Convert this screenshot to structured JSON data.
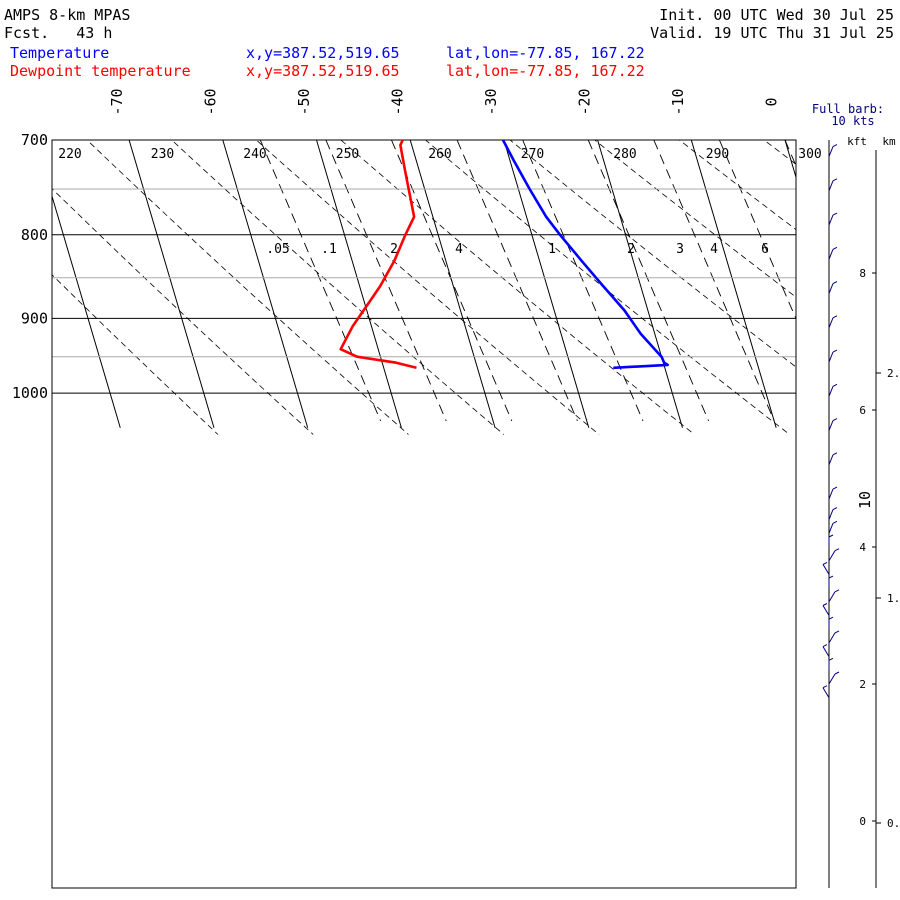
{
  "header": {
    "model": "AMPS 8-km MPAS",
    "fcst": "Fcst.   43 h",
    "init": "Init. 00 UTC Wed 30 Jul 25",
    "valid": "Valid. 19 UTC Thu 31 Jul 25"
  },
  "legend": [
    {
      "label": "Temperature",
      "xy": "x,y=387.52,519.65",
      "latlon": "lat,lon=-77.85, 167.22",
      "color": "#0000ff"
    },
    {
      "label": "Dewpoint temperature",
      "xy": "x,y=387.52,519.65",
      "latlon": "lat,lon=-77.85, 167.22",
      "color": "#ff0000"
    }
  ],
  "chart_data": {
    "type": "line",
    "diagram": "skew-T log-p",
    "pressure_levels": [
      {
        "p": 700,
        "label": "700"
      },
      {
        "p": 800,
        "label": "800"
      },
      {
        "p": 900,
        "label": "900"
      },
      {
        "p": 1000,
        "label": "1000"
      }
    ],
    "temperature_ticks": [
      "-70",
      "-60",
      "-50",
      "-40",
      "-30",
      "-20",
      "-10",
      "0",
      "10"
    ],
    "theta_labels": [
      "220",
      "230",
      "240",
      "250",
      "260",
      "270",
      "280",
      "290",
      "300"
    ],
    "mixing_ratio_labels": [
      ".05",
      ".1",
      "2",
      "4",
      "1",
      "2",
      "3",
      "4",
      "6"
    ],
    "series": [
      {
        "name": "Temperature",
        "color": "#0000ff",
        "points": [
          {
            "p": 700,
            "t": -30.1
          },
          {
            "p": 720,
            "t": -29.6
          },
          {
            "p": 750,
            "t": -28.8
          },
          {
            "p": 780,
            "t": -27.9
          },
          {
            "p": 800,
            "t": -27.0
          },
          {
            "p": 830,
            "t": -25.5
          },
          {
            "p": 860,
            "t": -24.0
          },
          {
            "p": 890,
            "t": -22.5
          },
          {
            "p": 920,
            "t": -21.5
          },
          {
            "p": 950,
            "t": -20.0
          },
          {
            "p": 958,
            "t": -19.9
          },
          {
            "p": 961,
            "t": -19.6
          },
          {
            "p": 965,
            "t": -25.5
          }
        ]
      },
      {
        "name": "Dewpoint temperature",
        "color": "#ff0000",
        "points": [
          {
            "p": 700,
            "t": -40.8
          },
          {
            "p": 705,
            "t": -41.2
          },
          {
            "p": 730,
            "t": -41.5
          },
          {
            "p": 760,
            "t": -41.8
          },
          {
            "p": 780,
            "t": -42.0
          },
          {
            "p": 800,
            "t": -43.5
          },
          {
            "p": 830,
            "t": -45.5
          },
          {
            "p": 860,
            "t": -47.8
          },
          {
            "p": 880,
            "t": -49.5
          },
          {
            "p": 910,
            "t": -52.0
          },
          {
            "p": 940,
            "t": -54.0
          },
          {
            "p": 950,
            "t": -52.5
          },
          {
            "p": 958,
            "t": -48.5
          },
          {
            "p": 965,
            "t": -46.5
          }
        ]
      }
    ],
    "wind": {
      "title": "Full barb:",
      "subtitle": "10 kts",
      "kft_label": "kft",
      "km_label": "km",
      "kft_ticks": [
        {
          "h": 8,
          "label": "8"
        },
        {
          "h": 6,
          "label": "6"
        },
        {
          "h": 4,
          "label": "4"
        },
        {
          "h": 2,
          "label": "2"
        },
        {
          "h": 0,
          "label": "0"
        }
      ],
      "km_ticks": [
        {
          "h": 2.0,
          "label": "2."
        },
        {
          "h": 1.0,
          "label": "1."
        },
        {
          "h": 0.0,
          "label": "0."
        }
      ],
      "barb_levels_kft": [
        9.7,
        9.2,
        8.7,
        8.2,
        7.7,
        7.2,
        6.7,
        6.2,
        5.7,
        5.2,
        4.7,
        4.4,
        4.2,
        4.0,
        3.8,
        3.6,
        3.4,
        3.2,
        3.0,
        2.8,
        2.6,
        2.4,
        2.2,
        2.0,
        1.8
      ]
    }
  }
}
